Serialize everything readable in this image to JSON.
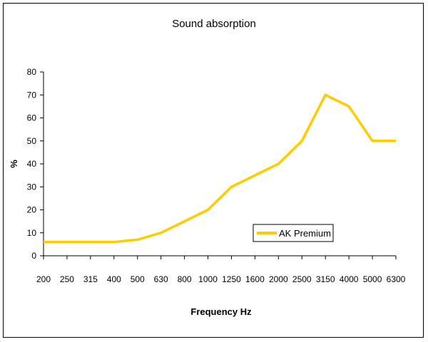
{
  "chart_data": {
    "type": "line",
    "title": "Sound absorption",
    "xlabel": "Frequency Hz",
    "ylabel": "%",
    "categories": [
      "200",
      "250",
      "315",
      "400",
      "500",
      "630",
      "800",
      "1000",
      "1250",
      "1600",
      "2000",
      "2500",
      "3150",
      "4000",
      "5000",
      "6300"
    ],
    "series": [
      {
        "name": "AK Premium",
        "color": "#FFCC00",
        "values": [
          6,
          6,
          6,
          6,
          7,
          10,
          15,
          20,
          30,
          35,
          40,
          50,
          70,
          65,
          50,
          50
        ]
      }
    ],
    "ylim": [
      0,
      80
    ],
    "yticks": [
      0,
      10,
      20,
      30,
      40,
      50,
      60,
      70,
      80
    ],
    "grid": false,
    "legend_position": "bottom-right"
  }
}
